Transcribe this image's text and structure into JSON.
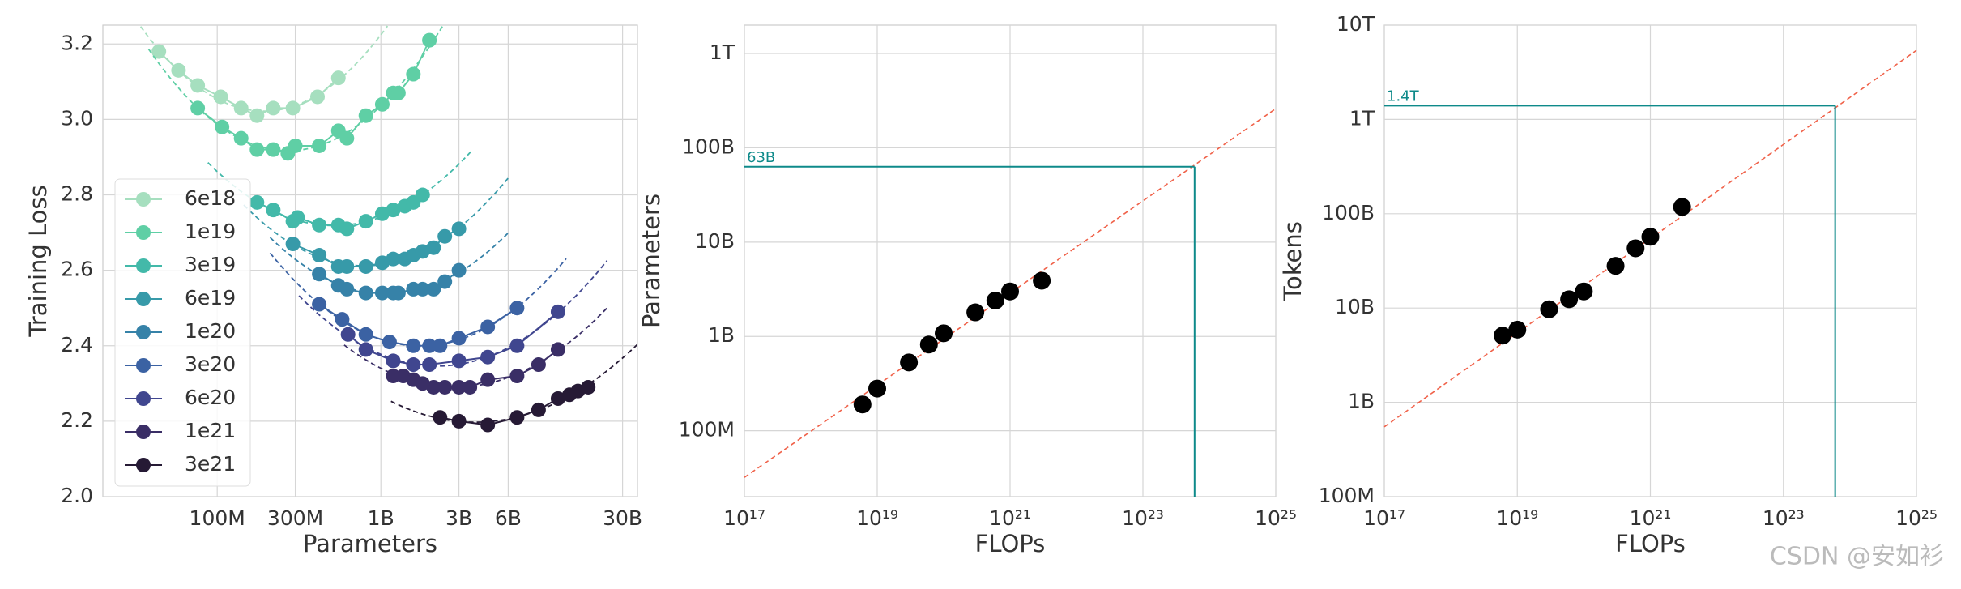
{
  "chart_data": [
    {
      "type": "line",
      "xlabel": "Parameters",
      "ylabel": "Training Loss",
      "xscale": "log",
      "xlim": [
        20000000.0,
        37000000000.0
      ],
      "ylim": [
        2.0,
        3.25
      ],
      "xticks": [
        {
          "value": 100000000.0,
          "label": "100M"
        },
        {
          "value": 300000000.0,
          "label": "300M"
        },
        {
          "value": 1000000000.0,
          "label": "1B"
        },
        {
          "value": 3000000000.0,
          "label": "3B"
        },
        {
          "value": 6000000000.0,
          "label": "6B"
        },
        {
          "value": 30000000000.0,
          "label": "30B"
        }
      ],
      "yticks": [
        {
          "value": 2.0,
          "label": "2.0"
        },
        2.2,
        2.4,
        2.6,
        2.8,
        {
          "value": 3.0,
          "label": "3.0"
        },
        3.2
      ],
      "grid": true,
      "legend": "lower left",
      "series": [
        {
          "name": "6e18",
          "color": "#a6dfbf",
          "x": [
            44000000.0,
            58000000.0,
            76000000.0,
            105000000.0,
            140000000.0,
            175000000.0,
            220000000.0,
            290000000.0,
            410000000.0,
            550000000.0
          ],
          "values": [
            3.18,
            3.13,
            3.09,
            3.06,
            3.03,
            3.01,
            3.03,
            3.03,
            3.06,
            3.11
          ]
        },
        {
          "name": "1e19",
          "color": "#5fcfa5",
          "x": [
            76000000.0,
            107000000.0,
            140000000.0,
            175000000.0,
            220000000.0,
            270000000.0,
            300000000.0,
            420000000.0,
            550000000.0,
            620000000.0,
            810000000.0,
            1020000000.0,
            1190000000.0,
            1280000000.0,
            1580000000.0,
            1980000000.0
          ],
          "values": [
            3.03,
            2.98,
            2.95,
            2.92,
            2.92,
            2.91,
            2.93,
            2.93,
            2.97,
            2.95,
            3.01,
            3.04,
            3.07,
            3.07,
            3.12,
            3.21
          ]
        },
        {
          "name": "3e19",
          "color": "#43b9a9",
          "x": [
            175000000.0,
            220000000.0,
            290000000.0,
            310000000.0,
            420000000.0,
            550000000.0,
            620000000.0,
            810000000.0,
            1020000000.0,
            1190000000.0,
            1400000000.0,
            1580000000.0,
            1800000000.0
          ],
          "values": [
            2.78,
            2.76,
            2.73,
            2.74,
            2.72,
            2.72,
            2.71,
            2.73,
            2.75,
            2.76,
            2.77,
            2.78,
            2.8
          ]
        },
        {
          "name": "6e19",
          "color": "#379aa9",
          "x": [
            290000000.0,
            420000000.0,
            550000000.0,
            620000000.0,
            810000000.0,
            1020000000.0,
            1190000000.0,
            1400000000.0,
            1580000000.0,
            1800000000.0,
            2100000000.0,
            2460000000.0,
            3000000000.0
          ],
          "values": [
            2.67,
            2.64,
            2.61,
            2.61,
            2.61,
            2.62,
            2.63,
            2.63,
            2.64,
            2.65,
            2.66,
            2.69,
            2.71
          ]
        },
        {
          "name": "1e20",
          "color": "#3682a8",
          "x": [
            420000000.0,
            550000000.0,
            620000000.0,
            810000000.0,
            1020000000.0,
            1190000000.0,
            1280000000.0,
            1580000000.0,
            1800000000.0,
            2100000000.0,
            2460000000.0,
            3000000000.0
          ],
          "values": [
            2.59,
            2.56,
            2.55,
            2.54,
            2.54,
            2.54,
            2.54,
            2.55,
            2.55,
            2.55,
            2.57,
            2.6
          ]
        },
        {
          "name": "3e20",
          "color": "#3b62a3",
          "x": [
            420000000.0,
            580000000.0,
            810000000.0,
            1130000000.0,
            1580000000.0,
            1980000000.0,
            2300000000.0,
            3000000000.0,
            4500000000.0,
            6800000000.0
          ],
          "values": [
            2.51,
            2.47,
            2.43,
            2.41,
            2.4,
            2.4,
            2.4,
            2.42,
            2.45,
            2.5
          ]
        },
        {
          "name": "6e20",
          "color": "#40468f",
          "x": [
            630000000.0,
            810000000.0,
            1190000000.0,
            1580000000.0,
            1980000000.0,
            3000000000.0,
            4500000000.0,
            6800000000.0,
            12100000000.0
          ],
          "values": [
            2.43,
            2.39,
            2.36,
            2.35,
            2.35,
            2.36,
            2.37,
            2.4,
            2.49
          ]
        },
        {
          "name": "1e21",
          "color": "#3a2e66",
          "x": [
            1190000000.0,
            1370000000.0,
            1580000000.0,
            1800000000.0,
            2100000000.0,
            2460000000.0,
            3000000000.0,
            3500000000.0,
            4500000000.0,
            6800000000.0,
            9200000000.0,
            12100000000.0
          ],
          "values": [
            2.32,
            2.32,
            2.31,
            2.3,
            2.29,
            2.29,
            2.29,
            2.29,
            2.31,
            2.32,
            2.35,
            2.39
          ]
        },
        {
          "name": "3e21",
          "color": "#261a35",
          "x": [
            2300000000.0,
            3000000000.0,
            4500000000.0,
            6800000000.0,
            9200000000.0,
            12100000000.0,
            14200000000.0,
            16000000000.0,
            18500000000.0
          ],
          "values": [
            2.21,
            2.2,
            2.19,
            2.21,
            2.23,
            2.26,
            2.27,
            2.28,
            2.29
          ]
        }
      ]
    },
    {
      "type": "scatter",
      "xlabel": "FLOPs",
      "ylabel": "Parameters",
      "xscale": "log",
      "yscale": "log",
      "xlim": [
        1e+17,
        1e+25
      ],
      "ylim": [
        20000000.0,
        2000000000000.0
      ],
      "xticks": [
        {
          "value": 1e+17,
          "label": "10¹⁷"
        },
        {
          "value": 1e+19,
          "label": "10¹⁹"
        },
        {
          "value": 1e+21,
          "label": "10²¹"
        },
        {
          "value": 1e+23,
          "label": "10²³"
        },
        {
          "value": 1e+25,
          "label": "10²⁵"
        }
      ],
      "yticks": [
        {
          "value": 100000000.0,
          "label": "100M"
        },
        {
          "value": 1000000000.0,
          "label": "1B"
        },
        {
          "value": 10000000000.0,
          "label": "10B"
        },
        {
          "value": 100000000000.0,
          "label": "100B"
        },
        {
          "value": 1000000000000.0,
          "label": "1T"
        }
      ],
      "grid": true,
      "color": "#000000",
      "x": [
        6e+18,
        1e+19,
        3e+19,
        6e+19,
        1e+20,
        3e+20,
        6e+20,
        1e+21,
        3e+21
      ],
      "values": [
        190000000.0,
        280000000.0,
        530000000.0,
        820000000.0,
        1080000000.0,
        1800000000.0,
        2400000000.0,
        3000000000.0,
        3900000000.0
      ],
      "fit": {
        "color": "#f0624a",
        "x": [
          1e+17,
          1e+25
        ],
        "values": [
          32000000.0,
          260000000000.0
        ]
      },
      "projection": {
        "color": "#0e8a8a",
        "x": 6e+23,
        "value": 63000000000.0,
        "label": "63B"
      }
    },
    {
      "type": "scatter",
      "xlabel": "FLOPs",
      "ylabel": "Tokens",
      "xscale": "log",
      "yscale": "log",
      "xlim": [
        1e+17,
        1e+25
      ],
      "ylim": [
        100000000.0,
        10000000000000.0
      ],
      "xticks": [
        {
          "value": 1e+17,
          "label": "10¹⁷"
        },
        {
          "value": 1e+19,
          "label": "10¹⁹"
        },
        {
          "value": 1e+21,
          "label": "10²¹"
        },
        {
          "value": 1e+23,
          "label": "10²³"
        },
        {
          "value": 1e+25,
          "label": "10²⁵"
        }
      ],
      "yticks": [
        {
          "value": 100000000.0,
          "label": "100M"
        },
        {
          "value": 1000000000.0,
          "label": "1B"
        },
        {
          "value": 10000000000.0,
          "label": "10B"
        },
        {
          "value": 100000000000.0,
          "label": "100B"
        },
        {
          "value": 1000000000000.0,
          "label": "1T"
        },
        {
          "value": 10000000000000.0,
          "label": "10T"
        }
      ],
      "grid": true,
      "color": "#000000",
      "x": [
        6e+18,
        1e+19,
        3e+19,
        6e+19,
        1e+20,
        3e+20,
        6e+20,
        1e+21,
        3e+21
      ],
      "values": [
        5100000000.0,
        5900000000.0,
        9700000000.0,
        12400000000.0,
        15000000000.0,
        28000000000.0,
        43000000000.0,
        57000000000.0,
        118000000000.0
      ],
      "fit": {
        "color": "#f0624a",
        "x": [
          1e+17,
          1e+25
        ],
        "values": [
          550000000.0,
          5400000000000.0
        ]
      },
      "projection": {
        "color": "#0e8a8a",
        "x": 6e+23,
        "value": 1400000000000.0,
        "label": "1.4T"
      }
    }
  ],
  "watermark": "CSDN @安如衫"
}
